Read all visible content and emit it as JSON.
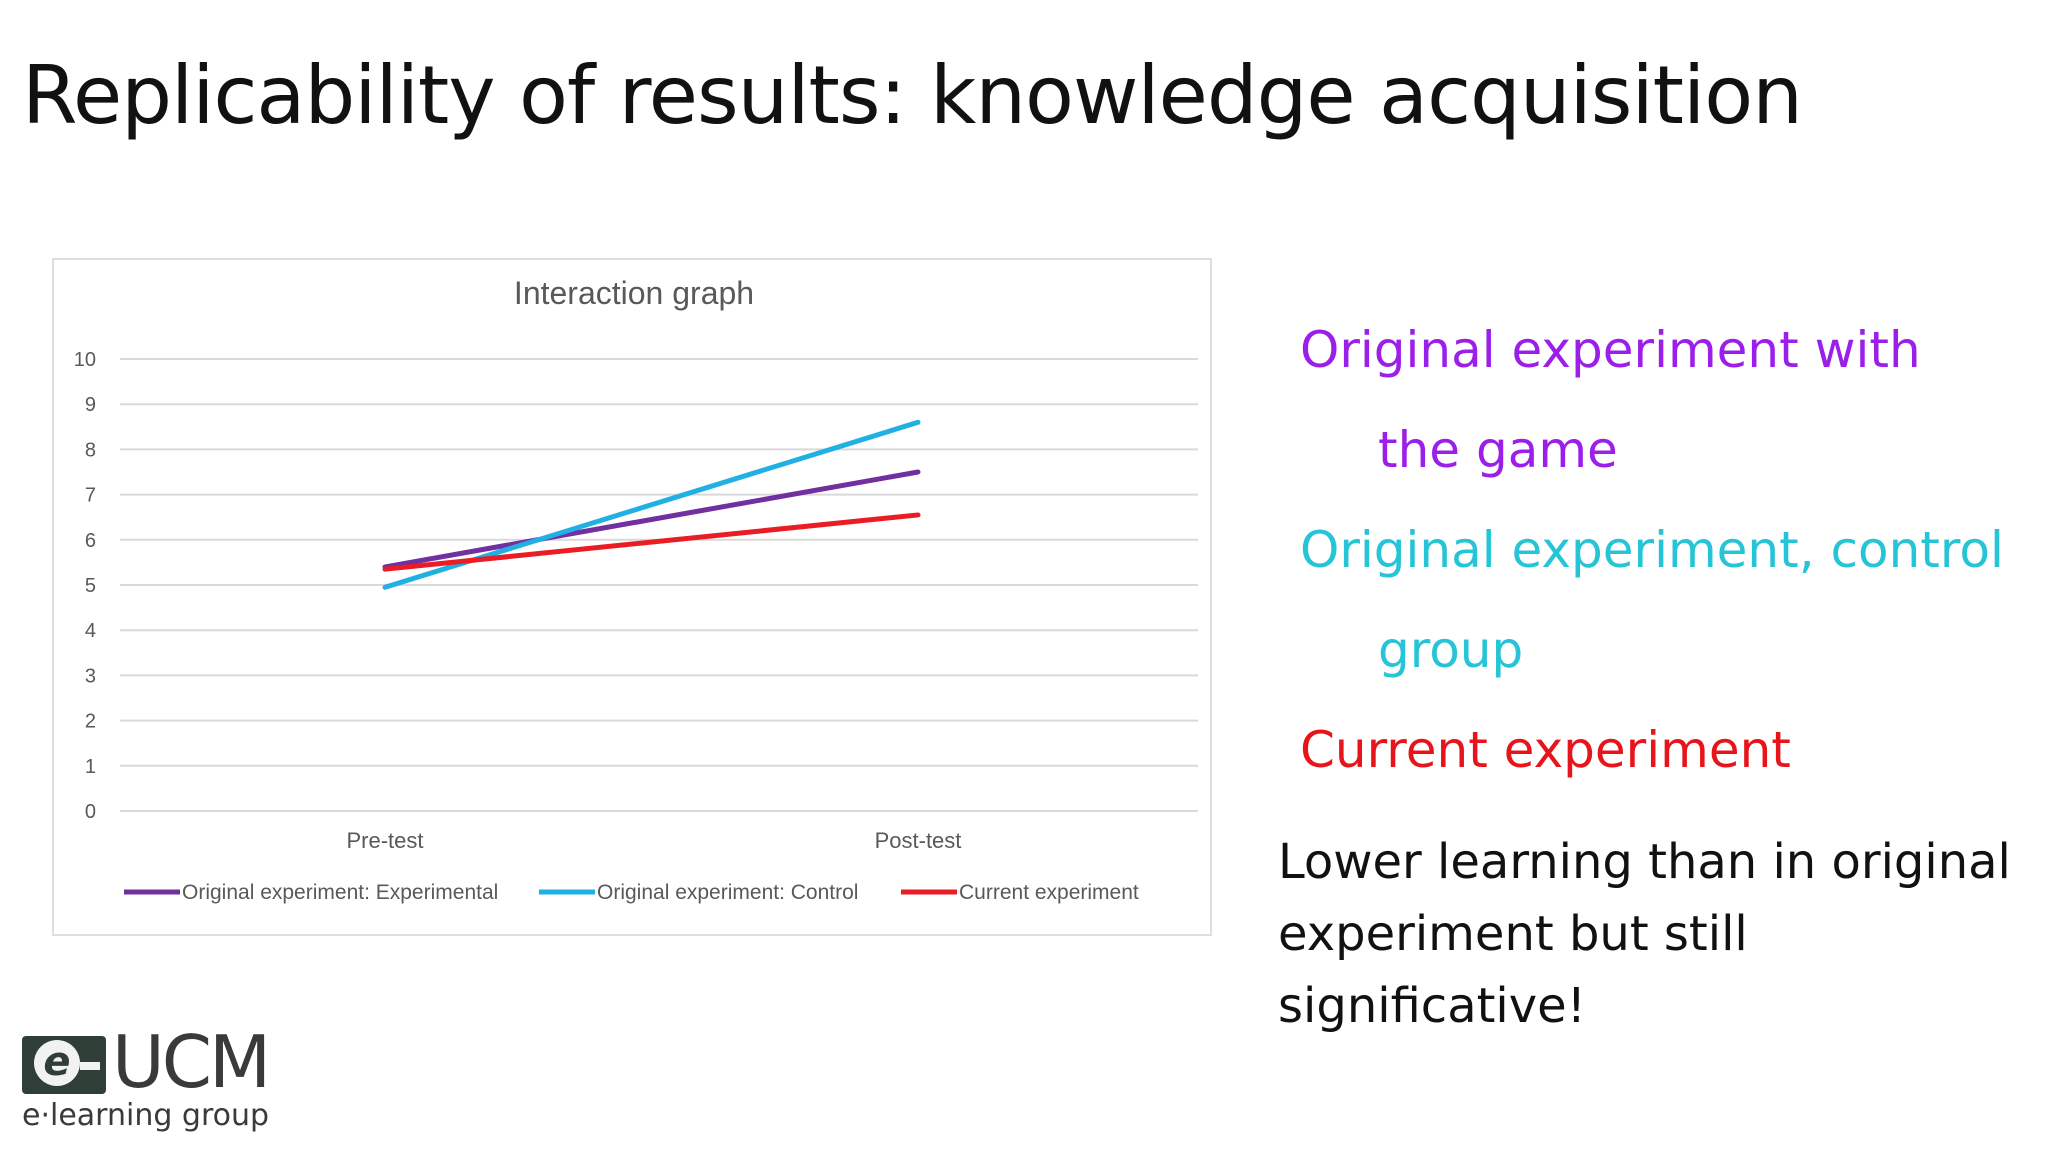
{
  "slide": {
    "title": "Replicability of results: knowledge acquisition"
  },
  "chart_data": {
    "type": "line",
    "title": "Interaction graph",
    "categories": [
      "Pre-test",
      "Post-test"
    ],
    "yticks": [
      "0",
      "1",
      "2",
      "3",
      "4",
      "5",
      "6",
      "7",
      "8",
      "9",
      "10"
    ],
    "ylim": [
      0,
      10
    ],
    "grid": true,
    "legend_position": "bottom",
    "series": [
      {
        "name": "Original experiment: Experimental",
        "values": [
          5.4,
          7.5
        ],
        "color": "#7030a0"
      },
      {
        "name": "Original experiment: Control",
        "values": [
          4.95,
          8.6
        ],
        "color": "#21b0e3"
      },
      {
        "name": "Current experiment",
        "values": [
          5.35,
          6.55
        ],
        "color": "#ea1c24"
      }
    ]
  },
  "notes": {
    "lines": [
      {
        "text": "Original experiment with",
        "color": "#9b1fe8",
        "indent": false
      },
      {
        "text": "the game",
        "color": "#9b1fe8",
        "indent": true
      },
      {
        "text": "Original experiment, control",
        "color": "#25c4d6",
        "indent": false
      },
      {
        "text": "group",
        "color": "#25c4d6",
        "indent": true
      },
      {
        "text": "Current experiment",
        "color": "#e8141b",
        "indent": false
      }
    ],
    "conclusion": "Lower learning than in original experiment but still significative!"
  },
  "logo": {
    "name": "UCM",
    "subtitle": "e·learning group",
    "badge_letter": "e"
  }
}
